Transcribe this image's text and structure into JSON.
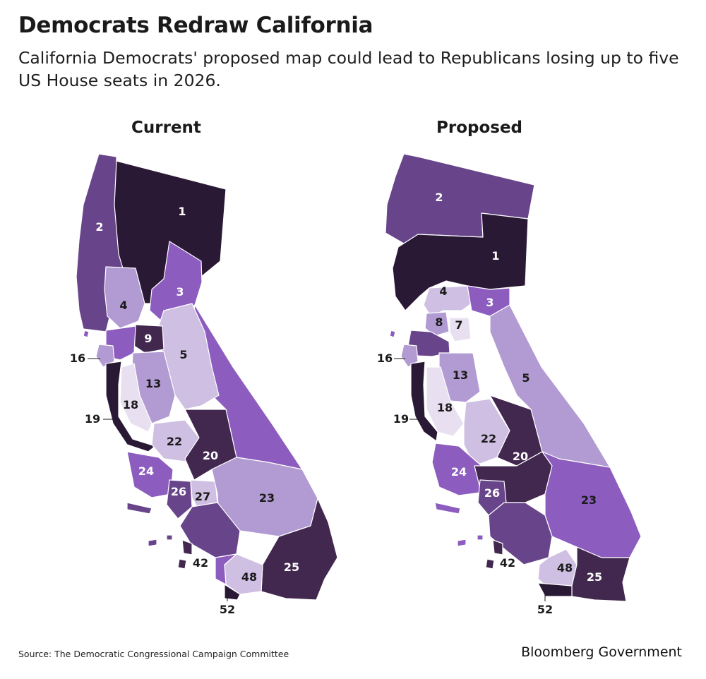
{
  "title": "Democrats Redraw California",
  "subtitle": "California Democrats' proposed map could lead to Republicans losing up to five US House seats in 2026.",
  "source": "Source: The Democratic Congressional Campaign Committee",
  "brand": "Bloomberg Government",
  "colors": {
    "darkest": "#2a1935",
    "dark": "#42274f",
    "medium_dark": "#68458a",
    "medium": "#8c5cbf",
    "light": "#b29ad2",
    "lighter": "#cfc0e3",
    "lightest": "#e8e0f1",
    "border": "#ffffff"
  },
  "maps": [
    {
      "heading": "Current",
      "labels": {
        "d1": "1",
        "d2": "2",
        "d3": "3",
        "d4": "4",
        "d5": "5",
        "d9": "9",
        "d13": "13",
        "d18": "18",
        "d22": "22",
        "d20": "20",
        "d24": "24",
        "d26": "26",
        "d27": "27",
        "d23": "23",
        "d25": "25",
        "d48": "48",
        "d16": "16",
        "d19": "19",
        "d42": "42",
        "d52": "52"
      }
    },
    {
      "heading": "Proposed",
      "labels": {
        "d2": "2",
        "d1": "1",
        "d4": "4",
        "d3": "3",
        "d8": "8",
        "d7": "7",
        "d5": "5",
        "d13": "13",
        "d18": "18",
        "d22": "22",
        "d20": "20",
        "d24": "24",
        "d26": "26",
        "d23": "23",
        "d25": "25",
        "d48": "48",
        "d16": "16",
        "d19": "19",
        "d42": "42",
        "d52": "52"
      }
    }
  ]
}
